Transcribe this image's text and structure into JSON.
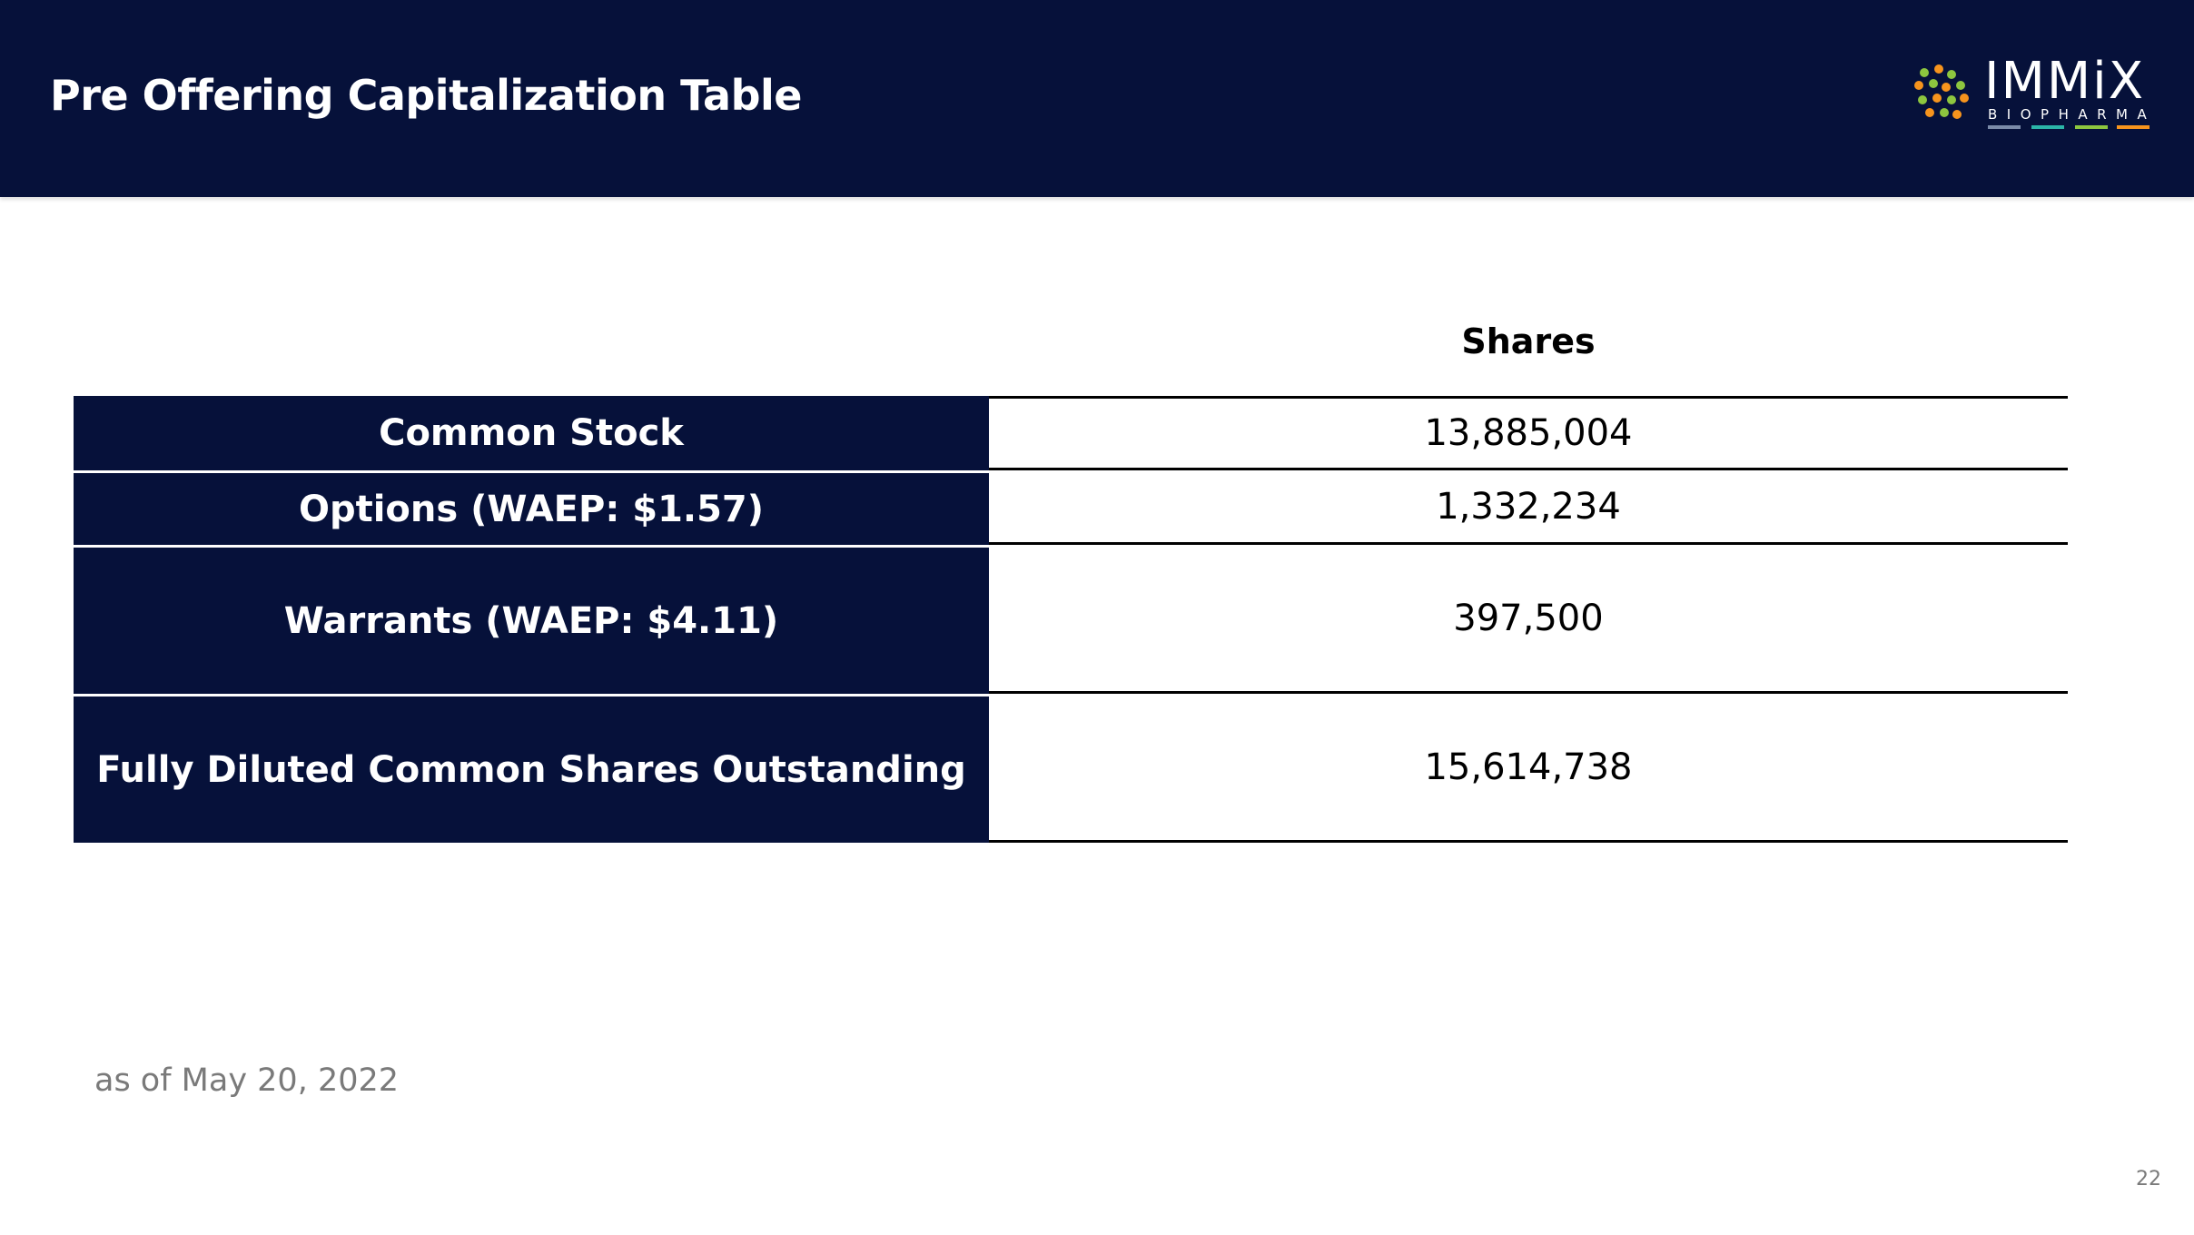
{
  "header": {
    "title": "Pre Offering Capitalization Table",
    "logo": {
      "word": "IMMiX",
      "sub": "BIOPHARMA",
      "colors": [
        "#8dc63f",
        "#f7941d",
        "#ffffff"
      ],
      "bar_colors": [
        "#7a8aa8",
        "#2bb5a8",
        "#8dc63f",
        "#f7941d"
      ]
    }
  },
  "table": {
    "column_header": "Shares",
    "rows": [
      {
        "label": "Common Stock",
        "value": "13,885,004"
      },
      {
        "label": "Options (WAEP: $1.57)",
        "value": "1,332,234"
      },
      {
        "label": "Warrants (WAEP: $4.11)",
        "value": "397,500"
      },
      {
        "label": "Fully Diluted Common Shares Outstanding",
        "value": "15,614,738"
      }
    ]
  },
  "footnote": "as of May 20, 2022",
  "page_number": "22",
  "colors": {
    "navy": "#06113a",
    "footnote_gray": "#7a7a7a"
  }
}
